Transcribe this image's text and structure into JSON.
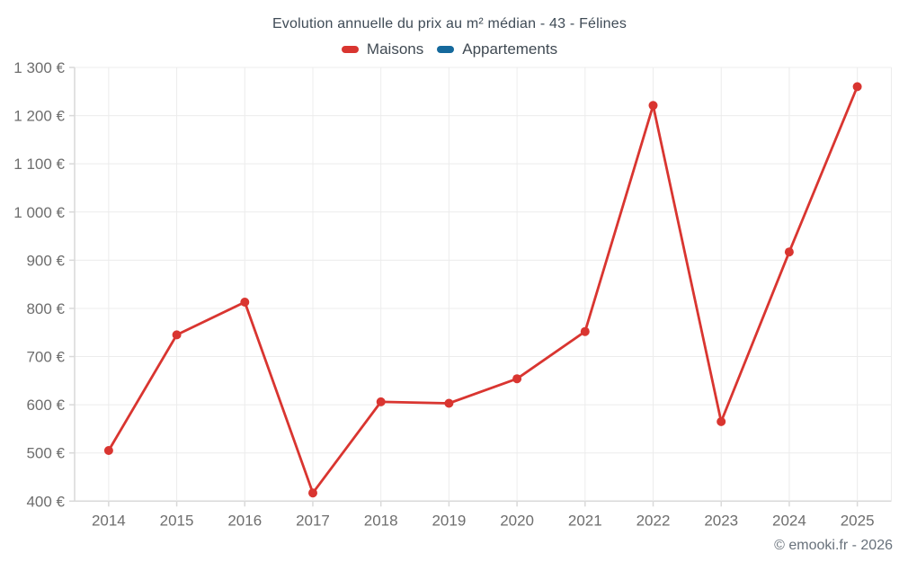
{
  "chart_data": {
    "type": "line",
    "title": "Evolution annuelle du prix au m² médian - 43 - Félines",
    "categories": [
      "2014",
      "2015",
      "2016",
      "2017",
      "2018",
      "2019",
      "2020",
      "2021",
      "2022",
      "2023",
      "2024",
      "2025"
    ],
    "series": [
      {
        "name": "Maisons",
        "color": "#d93530",
        "values": [
          505,
          745,
          813,
          417,
          606,
          603,
          654,
          752,
          1221,
          565,
          917,
          1260
        ]
      },
      {
        "name": "Appartements",
        "color": "#15699c",
        "values": []
      }
    ],
    "xlabel": "",
    "ylabel": "",
    "ylim": [
      400,
      1300
    ],
    "y_tick_step": 100,
    "y_tick_labels": [
      "400 €",
      "500 €",
      "600 €",
      "700 €",
      "800 €",
      "900 €",
      "1 000 €",
      "1 100 €",
      "1 200 €",
      "1 300 €"
    ],
    "grid": "on",
    "legend_position": "top"
  },
  "footer": {
    "credit": "© emooki.fr - 2026"
  },
  "colors": {
    "grid_line": "#ececec",
    "axis_line": "#d9d9d9",
    "tick_label": "#6e6e6e",
    "title_text": "#3f4b56"
  }
}
